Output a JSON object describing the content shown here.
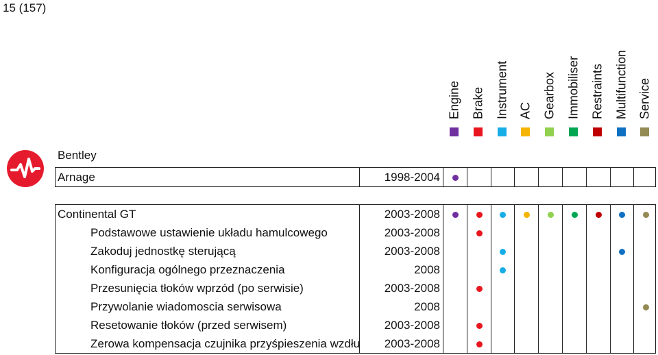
{
  "page_number": "15 (157)",
  "columns": [
    {
      "name": "Engine",
      "color": "#7030a0"
    },
    {
      "name": "Brake",
      "color": "#e8161e"
    },
    {
      "name": "Instrument",
      "color": "#17ade6"
    },
    {
      "name": "AC",
      "color": "#f4b400"
    },
    {
      "name": "Gearbox",
      "color": "#92d050"
    },
    {
      "name": "Immobiliser",
      "color": "#00a651"
    },
    {
      "name": "Restraints",
      "color": "#c00000"
    },
    {
      "name": "Multifunction",
      "color": "#0f6fc0"
    },
    {
      "name": "Service",
      "color": "#948a54"
    }
  ],
  "make": "Bentley",
  "groups": [
    {
      "model": "Arnage",
      "years": "1998-2004",
      "marks": [
        true,
        false,
        false,
        false,
        false,
        false,
        false,
        false,
        false
      ],
      "functions": []
    },
    {
      "model": "Continental GT",
      "years": "2003-2008",
      "marks": [
        true,
        true,
        true,
        true,
        true,
        true,
        true,
        true,
        true
      ],
      "functions": [
        {
          "name": "Podstawowe ustawienie układu hamulcowego",
          "years": "2003-2008",
          "marks": [
            false,
            true,
            false,
            false,
            false,
            false,
            false,
            false,
            false
          ]
        },
        {
          "name": "Zakoduj jednostkę sterującą",
          "years": "2003-2008",
          "marks": [
            false,
            false,
            true,
            false,
            false,
            false,
            false,
            true,
            false
          ]
        },
        {
          "name": "Konfiguracja ogólnego przeznaczenia",
          "years": "2008",
          "marks": [
            false,
            false,
            true,
            false,
            false,
            false,
            false,
            false,
            false
          ]
        },
        {
          "name": "Przesunięcia tłoków wprzód (po serwisie)",
          "years": "2003-2008",
          "marks": [
            false,
            true,
            false,
            false,
            false,
            false,
            false,
            false,
            false
          ]
        },
        {
          "name": "Przywolanie wiadomoscia serwisowa",
          "years": "2008",
          "marks": [
            false,
            false,
            false,
            false,
            false,
            false,
            false,
            false,
            true
          ]
        },
        {
          "name": "Resetowanie tłoków (przed serwisem)",
          "years": "2003-2008",
          "marks": [
            false,
            true,
            false,
            false,
            false,
            false,
            false,
            false,
            false
          ]
        },
        {
          "name": "Zerowa kompensacja czujnika przyśpieszenia wzdłużnego",
          "years": "2003-2008",
          "marks": [
            false,
            true,
            false,
            false,
            false,
            false,
            false,
            false,
            false
          ]
        }
      ]
    }
  ]
}
